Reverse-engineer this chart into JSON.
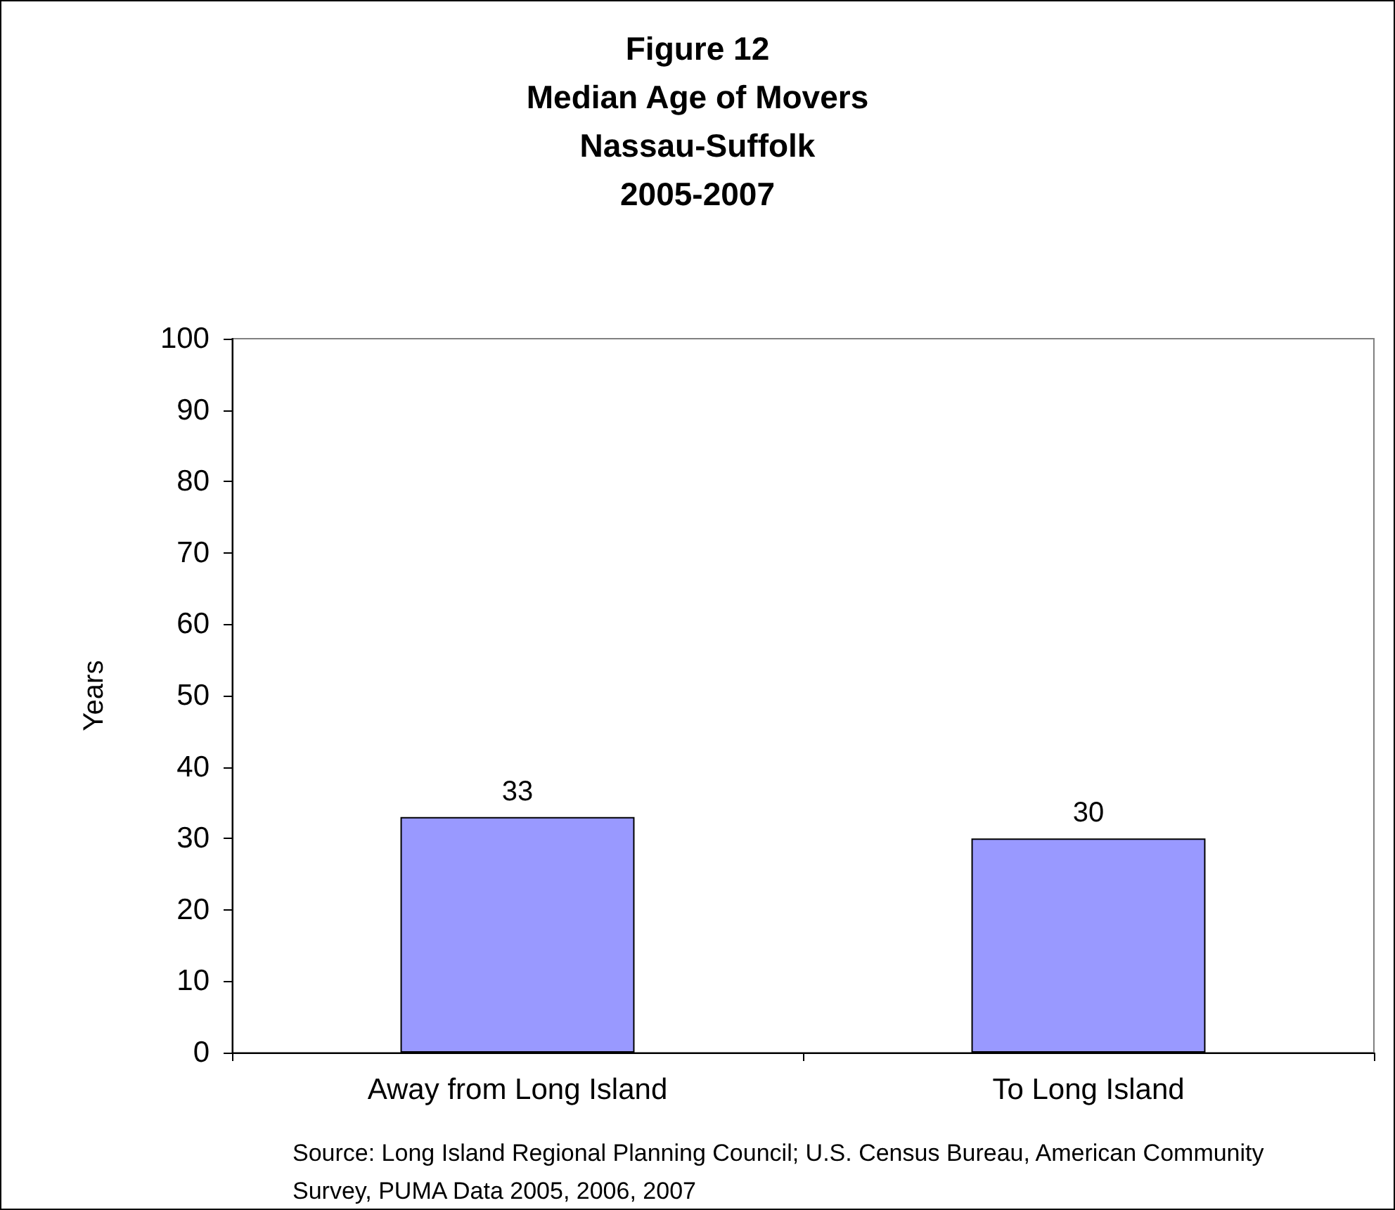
{
  "chart_data": {
    "type": "bar",
    "title": "Figure 12\nMedian Age of Movers\nNassau-Suffolk\n2005-2007",
    "ylabel": "Years",
    "categories": [
      "Away from Long Island",
      "To Long Island"
    ],
    "values": [
      33,
      30
    ],
    "color": "#9999ff",
    "ylim": [
      0,
      100
    ],
    "yticks": [
      0,
      10,
      20,
      30,
      40,
      50,
      60,
      70,
      80,
      90,
      100
    ],
    "grid": false,
    "data_labels": true,
    "annotations": [
      "Source: Long Island Regional Planning Council; U.S. Census Bureau, American Community Survey, PUMA Data 2005, 2006, 2007"
    ]
  }
}
